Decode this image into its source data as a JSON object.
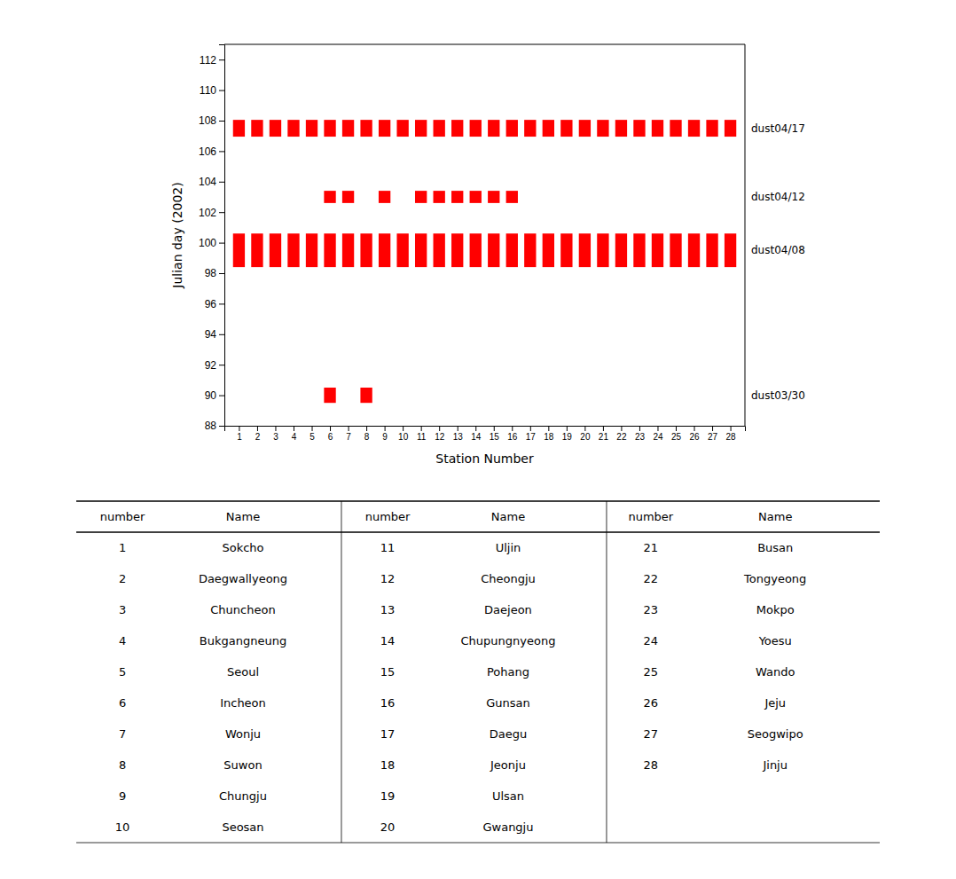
{
  "chart_data": {
    "type": "bar",
    "xlabel": "Station Number",
    "ylabel": "Julian day (2002)",
    "color": "#FF0000",
    "xlim": [
      0.2,
      28.8
    ],
    "xticks": [
      1,
      2,
      3,
      4,
      5,
      6,
      7,
      8,
      9,
      10,
      11,
      12,
      13,
      14,
      15,
      16,
      17,
      18,
      19,
      20,
      21,
      22,
      23,
      24,
      25,
      26,
      27,
      28
    ],
    "ylim": [
      88,
      113
    ],
    "yticks": [
      88,
      90,
      92,
      94,
      96,
      98,
      100,
      102,
      104,
      106,
      108,
      110,
      112
    ],
    "events": [
      {
        "label": "dust04/17",
        "julian_day": 107.5,
        "low": 106.95,
        "high": 108.05,
        "stations": [
          1,
          2,
          3,
          4,
          5,
          6,
          7,
          8,
          9,
          10,
          11,
          12,
          13,
          14,
          15,
          16,
          17,
          18,
          19,
          20,
          21,
          22,
          23,
          24,
          25,
          26,
          27,
          28
        ]
      },
      {
        "label": "dust04/12",
        "julian_day": 103.0,
        "low": 102.6,
        "high": 103.4,
        "stations": [
          6,
          7,
          9,
          11,
          12,
          13,
          14,
          15,
          16
        ]
      },
      {
        "label": "dust04/08",
        "julian_day": 99.5,
        "low": 98.4,
        "high": 100.6,
        "stations": [
          1,
          2,
          3,
          4,
          5,
          6,
          7,
          8,
          9,
          10,
          11,
          12,
          13,
          14,
          15,
          16,
          17,
          18,
          19,
          20,
          21,
          22,
          23,
          24,
          25,
          26,
          27,
          28
        ]
      },
      {
        "label": "dust03/30",
        "julian_day": 90.0,
        "low": 89.5,
        "high": 90.5,
        "stations": [
          6,
          8
        ]
      }
    ],
    "table": {
      "header": [
        "number",
        "Name"
      ],
      "groups": [
        [
          [
            1,
            "Sokcho"
          ],
          [
            2,
            "Daegwallyeong"
          ],
          [
            3,
            "Chuncheon"
          ],
          [
            4,
            "Bukgangneung"
          ],
          [
            5,
            "Seoul"
          ],
          [
            6,
            "Incheon"
          ],
          [
            7,
            "Wonju"
          ],
          [
            8,
            "Suwon"
          ],
          [
            9,
            "Chungju"
          ],
          [
            10,
            "Seosan"
          ]
        ],
        [
          [
            11,
            "Uljin"
          ],
          [
            12,
            "Cheongju"
          ],
          [
            13,
            "Daejeon"
          ],
          [
            14,
            "Chupungnyeong"
          ],
          [
            15,
            "Pohang"
          ],
          [
            16,
            "Gunsan"
          ],
          [
            17,
            "Daegu"
          ],
          [
            18,
            "Jeonju"
          ],
          [
            19,
            "Ulsan"
          ],
          [
            20,
            "Gwangju"
          ]
        ],
        [
          [
            21,
            "Busan"
          ],
          [
            22,
            "Tongyeong"
          ],
          [
            23,
            "Mokpo"
          ],
          [
            24,
            "Yoesu"
          ],
          [
            25,
            "Wando"
          ],
          [
            26,
            "Jeju"
          ],
          [
            27,
            "Seogwipo"
          ],
          [
            28,
            "Jinju"
          ]
        ]
      ]
    }
  }
}
